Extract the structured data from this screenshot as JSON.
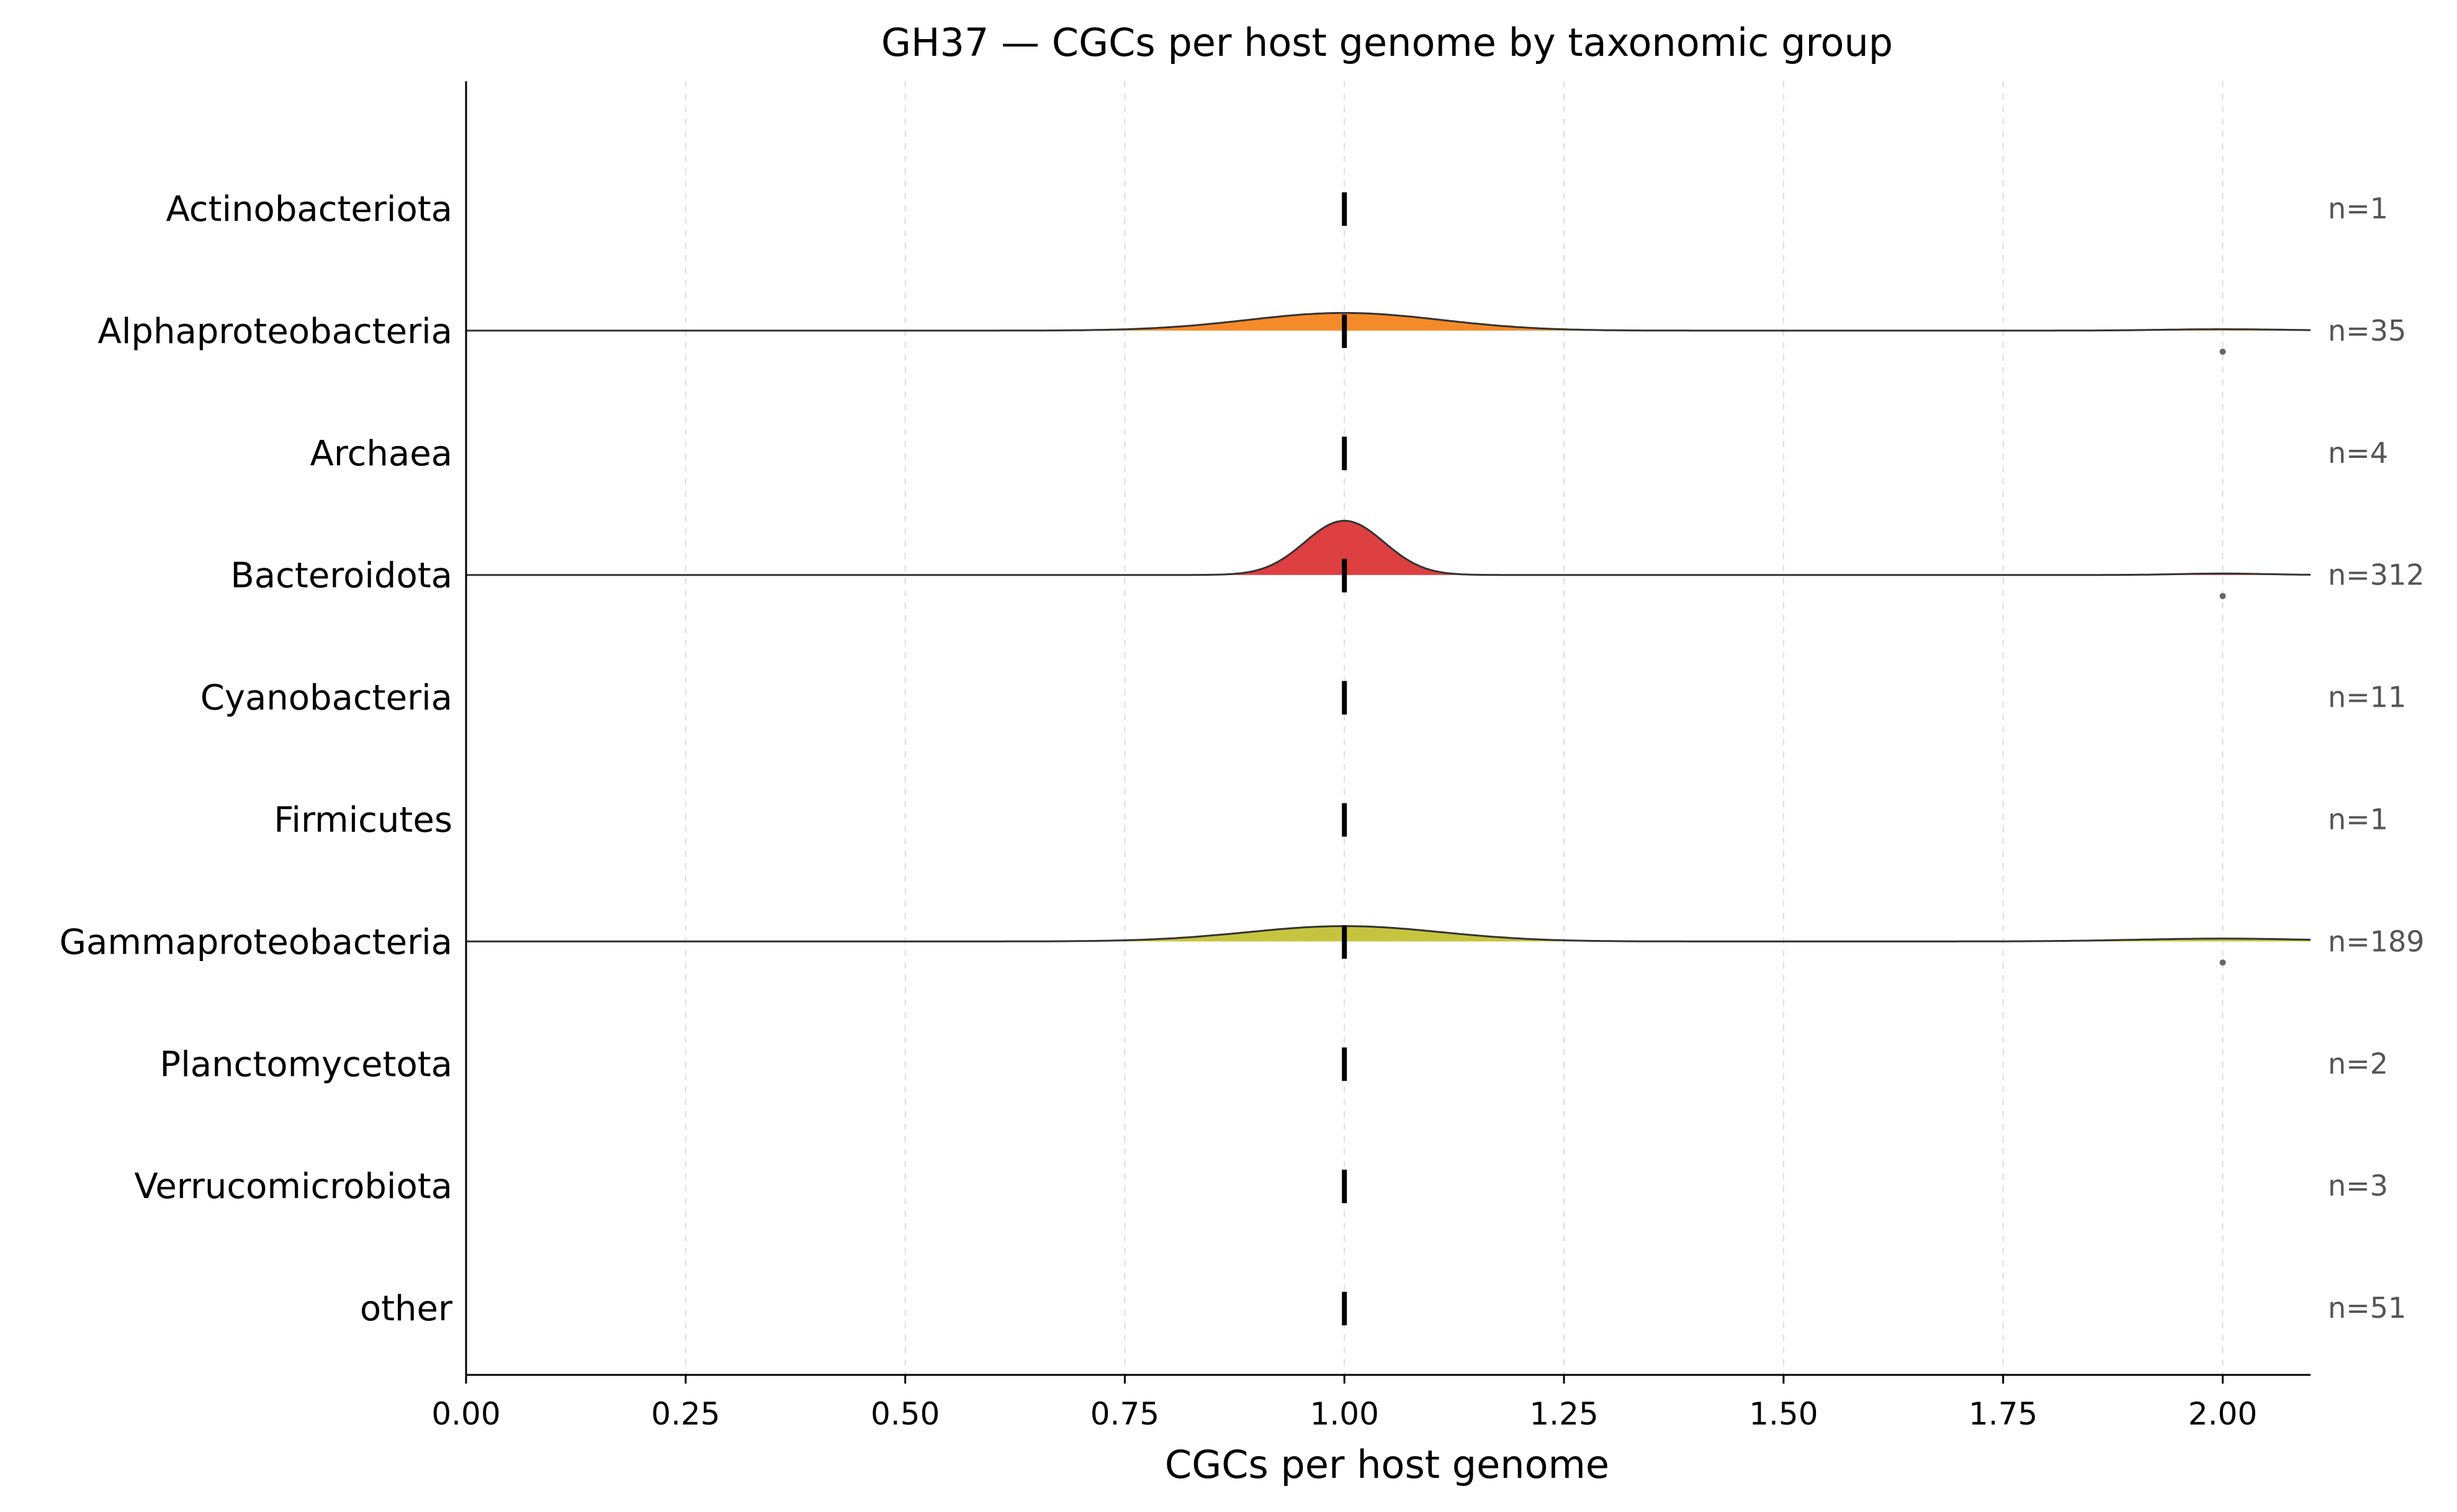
{
  "chart_data": {
    "type": "ridgeline",
    "title": "GH37 — CGCs per host genome by taxonomic group",
    "xlabel": "CGCs per host genome",
    "ylabel": "",
    "xlim": [
      0.0,
      2.1
    ],
    "xticks": [
      0.0,
      0.25,
      0.5,
      0.75,
      1.0,
      1.25,
      1.5,
      1.75,
      2.0
    ],
    "xtick_labels": [
      "0.00",
      "0.25",
      "0.50",
      "0.75",
      "1.00",
      "1.25",
      "1.50",
      "1.75",
      "2.00"
    ],
    "grid": "vertical dashed",
    "groups": [
      {
        "name": "Actinobacteriota",
        "n": 1,
        "n_label": "n=1",
        "median": 1.0,
        "color": "#1f77b4",
        "outliers": []
      },
      {
        "name": "Alphaproteobacteria",
        "n": 35,
        "n_label": "n=35",
        "median": 1.0,
        "color": "#f58a2a",
        "outliers": [
          2.0
        ]
      },
      {
        "name": "Archaea",
        "n": 4,
        "n_label": "n=4",
        "median": 1.0,
        "color": "#2ca02c",
        "outliers": []
      },
      {
        "name": "Bacteroidota",
        "n": 312,
        "n_label": "n=312",
        "median": 1.0,
        "color": "#de3f41",
        "outliers": [
          2.0
        ]
      },
      {
        "name": "Cyanobacteria",
        "n": 11,
        "n_label": "n=11",
        "median": 1.0,
        "color": "#9467bd",
        "outliers": []
      },
      {
        "name": "Firmicutes",
        "n": 1,
        "n_label": "n=1",
        "median": 1.0,
        "color": "#8c564b",
        "outliers": []
      },
      {
        "name": "Gammaproteobacteria",
        "n": 189,
        "n_label": "n=189",
        "median": 1.0,
        "color": "#c6c43f",
        "outliers": [
          2.0
        ]
      },
      {
        "name": "Planctomycetota",
        "n": 2,
        "n_label": "n=2",
        "median": 1.0,
        "color": "#7f7f7f",
        "outliers": []
      },
      {
        "name": "Verrucomicrobiota",
        "n": 3,
        "n_label": "n=3",
        "median": 1.0,
        "color": "#17becf",
        "outliers": []
      },
      {
        "name": "other",
        "n": 51,
        "n_label": "n=51",
        "median": 1.0,
        "color": "#aaaaaa",
        "outliers": []
      }
    ],
    "densities": [
      {
        "group": "Alphaproteobacteria",
        "bumps": [
          {
            "center": 1.0,
            "sd": 0.11,
            "height": 0.15
          },
          {
            "center": 2.0,
            "sd": 0.07,
            "height": 0.012
          }
        ]
      },
      {
        "group": "Bacteroidota",
        "bumps": [
          {
            "center": 1.0,
            "sd": 0.045,
            "height": 0.46
          },
          {
            "center": 2.0,
            "sd": 0.05,
            "height": 0.012
          }
        ]
      },
      {
        "group": "Gammaproteobacteria",
        "bumps": [
          {
            "center": 1.0,
            "sd": 0.11,
            "height": 0.13
          },
          {
            "center": 2.0,
            "sd": 0.1,
            "height": 0.024
          }
        ]
      }
    ]
  }
}
